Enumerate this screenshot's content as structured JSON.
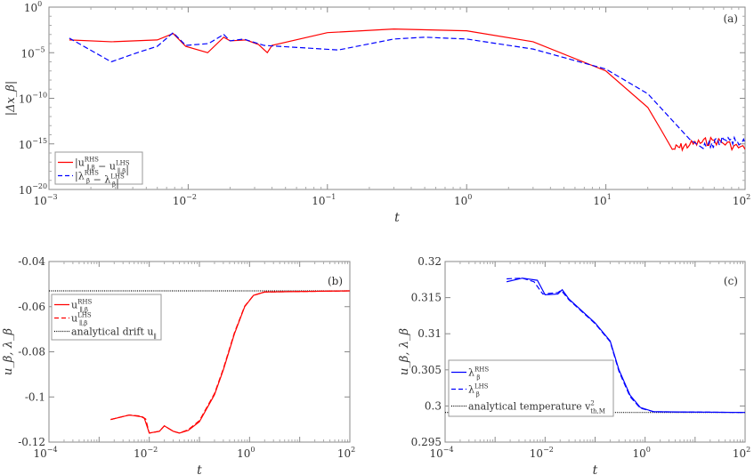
{
  "chart_data": [
    {
      "id": "a",
      "type": "line",
      "panel_label": "(a)",
      "xscale": "log",
      "yscale": "log",
      "xlim": [
        0.001,
        100
      ],
      "ylim_log10": [
        -20,
        0
      ],
      "xticks": [
        "10^-3",
        "10^-2",
        "10^-1",
        "10^0",
        "10^1",
        "10^2"
      ],
      "yticks": [
        "10^0",
        "10^-5",
        "10^-10",
        "10^-15",
        "10^-20"
      ],
      "xlabel": "t",
      "ylabel": "|Δx_β|",
      "legend_position": "bottom-left",
      "series": [
        {
          "name": "|u_{∥,β}^{RHS} − u_{∥,β}^{LHS}|",
          "legend": [
            {
              "t": "|u"
            },
            {
              "sub": "∥,β",
              "sup": "RHS"
            },
            {
              "t": " − u"
            },
            {
              "sub": "∥,β",
              "sup": "LHS"
            },
            {
              "t": "|"
            }
          ],
          "color": "#ff0000",
          "dash": "solid",
          "noisy_after": 28,
          "x": [
            0.0014,
            0.0028,
            0.006,
            0.0078,
            0.0096,
            0.0138,
            0.018,
            0.02,
            0.026,
            0.032,
            0.037,
            0.04,
            0.1,
            0.3,
            1,
            3,
            10,
            20,
            25,
            30,
            40,
            60,
            100
          ],
          "log10_y": [
            -3.6,
            -3.8,
            -3.6,
            -2.9,
            -4.3,
            -5,
            -3.3,
            -3.7,
            -3.6,
            -4.1,
            -5,
            -4.2,
            -2.8,
            -2.4,
            -2.6,
            -3.8,
            -7,
            -11,
            -13.5,
            -15.6,
            -15.1,
            -14.6,
            -15.6
          ]
        },
        {
          "name": "|λ_β^{RHS} − λ_β^{LHS}|",
          "legend": [
            {
              "t": "|λ"
            },
            {
              "sub": "β",
              "sup": "RHS"
            },
            {
              "t": " − λ"
            },
            {
              "sub": "β",
              "sup": "LHS"
            },
            {
              "t": "|"
            }
          ],
          "color": "#0000ff",
          "dash": "dashed",
          "noisy_after": 42,
          "x": [
            0.0014,
            0.0028,
            0.0045,
            0.006,
            0.0078,
            0.0096,
            0.014,
            0.018,
            0.02,
            0.025,
            0.035,
            0.12,
            0.3,
            0.5,
            1,
            3,
            10,
            20,
            40,
            50,
            70,
            100
          ],
          "log10_y": [
            -3.4,
            -6,
            -4.9,
            -4.3,
            -2.8,
            -4.2,
            -4,
            -3,
            -3.7,
            -3.5,
            -4.2,
            -4.7,
            -3.5,
            -3.3,
            -3.5,
            -4.6,
            -6.8,
            -9.5,
            -14.5,
            -15.5,
            -14.5,
            -15
          ]
        }
      ]
    },
    {
      "id": "b",
      "type": "line",
      "panel_label": "(b)",
      "xscale": "log",
      "yscale": "linear",
      "xlim": [
        0.0001,
        100
      ],
      "ylim": [
        -0.12,
        -0.04
      ],
      "xticks": [
        "10^-4",
        "10^-2",
        "10^0",
        "10^2"
      ],
      "yticks": [
        "-0.04",
        "-0.06",
        "-0.08",
        "-0.1",
        "-0.12"
      ],
      "ytick_values": [
        -0.04,
        -0.06,
        -0.08,
        -0.1,
        -0.12
      ],
      "xlabel": "t",
      "ylabel": "u_β, λ_β",
      "legend_position": "top-left",
      "reference": {
        "name": "analytical drift u_∥",
        "legend": [
          {
            "t": "analytical drift u"
          },
          {
            "sub": "∥"
          }
        ],
        "value": -0.053,
        "color": "#000000"
      },
      "series": [
        {
          "name": "u_{∥,β}^{RHS}",
          "legend": [
            {
              "t": "u"
            },
            {
              "sub": "∥,β",
              "sup": "RHS"
            }
          ],
          "color": "#ff0000",
          "dash": "solid",
          "x": [
            0.0017,
            0.004,
            0.007,
            0.008,
            0.01,
            0.016,
            0.02,
            0.03,
            0.04,
            0.06,
            0.1,
            0.2,
            0.3,
            0.5,
            0.8,
            1.2,
            2,
            100
          ],
          "y": [
            -0.11,
            -0.108,
            -0.1088,
            -0.1095,
            -0.116,
            -0.1152,
            -0.1128,
            -0.1152,
            -0.116,
            -0.1148,
            -0.111,
            -0.099,
            -0.088,
            -0.072,
            -0.06,
            -0.055,
            -0.0535,
            -0.053
          ]
        },
        {
          "name": "u_{∥,β}^{LHS}",
          "legend": [
            {
              "t": "u"
            },
            {
              "sub": "∥,β",
              "sup": "LHS"
            }
          ],
          "color": "#ff0000",
          "dash": "dashed",
          "x": [
            0.0017,
            0.004,
            0.007,
            0.0085,
            0.01,
            0.016,
            0.02,
            0.03,
            0.04,
            0.06,
            0.1,
            0.2,
            0.3,
            0.5,
            0.8,
            1.2,
            2,
            100
          ],
          "y": [
            -0.11,
            -0.108,
            -0.1085,
            -0.1098,
            -0.116,
            -0.1152,
            -0.1128,
            -0.1152,
            -0.116,
            -0.1145,
            -0.1105,
            -0.0985,
            -0.0875,
            -0.0715,
            -0.0598,
            -0.055,
            -0.0535,
            -0.053
          ]
        }
      ]
    },
    {
      "id": "c",
      "type": "line",
      "panel_label": "(c)",
      "xscale": "log",
      "yscale": "linear",
      "xlim": [
        0.0001,
        100
      ],
      "ylim": [
        0.295,
        0.32
      ],
      "xticks": [
        "10^-4",
        "10^-2",
        "10^0",
        "10^2"
      ],
      "yticks": [
        "0.32",
        "0.315",
        "0.31",
        "0.305",
        "0.3",
        "0.295"
      ],
      "ytick_values": [
        0.32,
        0.315,
        0.31,
        0.305,
        0.3,
        0.295
      ],
      "xlabel": "t",
      "ylabel": "u_β, λ_β",
      "legend_position": "bottom-left",
      "reference": {
        "name": "analytical temperature v_{th,M}^2",
        "legend": [
          {
            "t": "analytical temperature v"
          },
          {
            "sub": "th,M",
            "sup": "2"
          }
        ],
        "value": 0.2991,
        "color": "#000000"
      },
      "series": [
        {
          "name": "λ_β^{RHS}",
          "legend": [
            {
              "t": "λ"
            },
            {
              "sub": "β",
              "sup": "RHS"
            }
          ],
          "color": "#0000ff",
          "dash": "solid",
          "x": [
            0.0017,
            0.0035,
            0.007,
            0.01,
            0.018,
            0.022,
            0.03,
            0.1,
            0.2,
            0.3,
            0.5,
            0.8,
            1.5,
            100
          ],
          "y": [
            0.3172,
            0.3177,
            0.3174,
            0.3154,
            0.3155,
            0.3161,
            0.3148,
            0.3115,
            0.309,
            0.305,
            0.3015,
            0.2998,
            0.2992,
            0.2991
          ]
        },
        {
          "name": "λ_β^{LHS}",
          "legend": [
            {
              "t": "λ"
            },
            {
              "sub": "β",
              "sup": "LHS"
            }
          ],
          "color": "#0000ff",
          "dash": "dashed",
          "x": [
            0.0017,
            0.0035,
            0.006,
            0.009,
            0.018,
            0.021,
            0.03,
            0.1,
            0.2,
            0.3,
            0.5,
            0.8,
            1.5,
            100
          ],
          "y": [
            0.3176,
            0.3177,
            0.3172,
            0.3155,
            0.3157,
            0.316,
            0.3147,
            0.3114,
            0.3089,
            0.3048,
            0.3013,
            0.2997,
            0.2992,
            0.2991
          ]
        }
      ]
    }
  ]
}
